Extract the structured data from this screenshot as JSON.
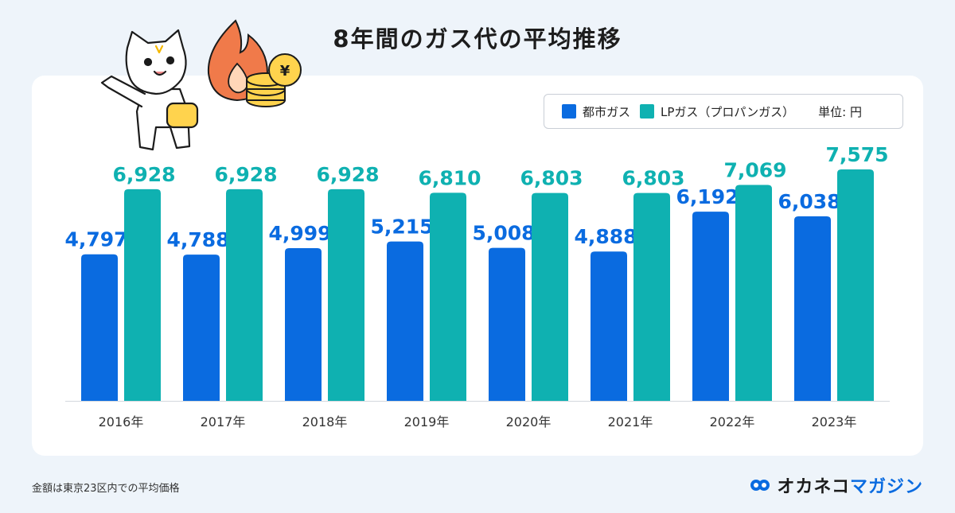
{
  "title": "8年間のガス代の平均推移",
  "legend": {
    "city_gas": "都市ガス",
    "lp_gas": "LPガス（プロパンガス）",
    "unit": "単位: 円"
  },
  "colors": {
    "city_gas": "#0a6be0",
    "lp_gas": "#0fb1b1",
    "background": "#eef4fa",
    "flame": "#f07a4a",
    "coin": "#ffd34d"
  },
  "footnote": "金額は東京23区内での平均価格",
  "brand": {
    "part1": "オカネコ",
    "part2": "マガジン"
  },
  "icons": {
    "cat": "cat-illustration-icon",
    "flame": "flame-icon",
    "coins": "yen-coins-icon",
    "logo": "okaneko-logo-icon"
  },
  "chart_data": {
    "type": "bar",
    "title": "8年間のガス代の平均推移",
    "categories": [
      "2016年",
      "2017年",
      "2018年",
      "2019年",
      "2020年",
      "2021年",
      "2022年",
      "2023年"
    ],
    "series": [
      {
        "name": "都市ガス",
        "values": [
          4797,
          4788,
          4999,
          5215,
          5008,
          4888,
          6192,
          6038
        ],
        "labels": [
          "4,797",
          "4,788",
          "4,999",
          "5,215",
          "5,008",
          "4,888",
          "6,192",
          "6,038"
        ]
      },
      {
        "name": "LPガス（プロパンガス）",
        "values": [
          6928,
          6928,
          6928,
          6810,
          6803,
          6803,
          7069,
          7575
        ],
        "labels": [
          "6,928",
          "6,928",
          "6,928",
          "6,810",
          "6,803",
          "6,803",
          "7,069",
          "7,575"
        ]
      }
    ],
    "ylabel": "単位: 円",
    "ylim": [
      0,
      7575
    ],
    "grid": false,
    "legend_position": "top-right"
  }
}
